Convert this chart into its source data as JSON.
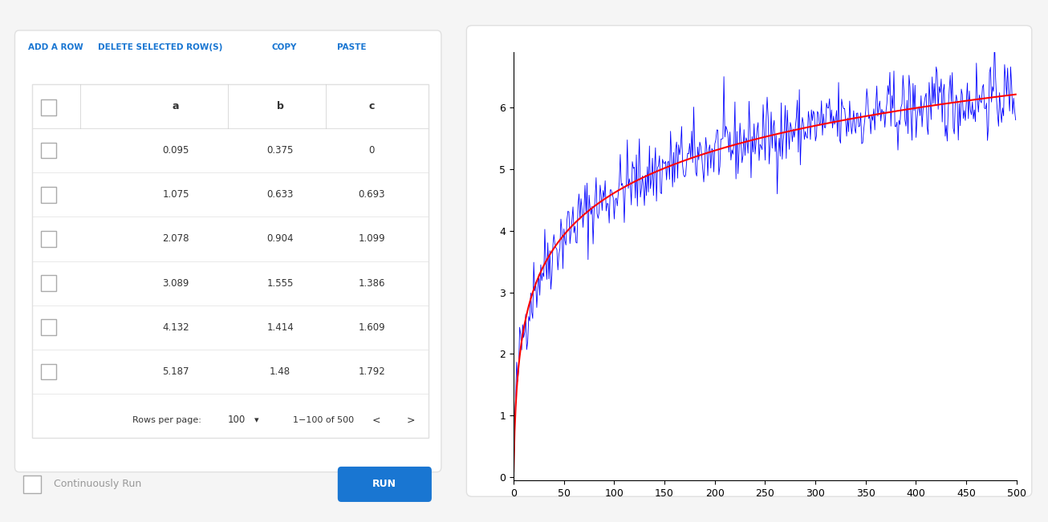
{
  "n_points": 500,
  "x_start": 0.095,
  "x_step": 1.0,
  "noise_std": 0.3,
  "smooth_color": "#ff0000",
  "noisy_color": "#0000ff",
  "smooth_linewidth": 1.5,
  "noisy_linewidth": 0.6,
  "xlim": [
    0,
    500
  ],
  "ylim": [
    -0.05,
    6.9
  ],
  "xticks": [
    0,
    50,
    100,
    150,
    200,
    250,
    300,
    350,
    400,
    450,
    500
  ],
  "yticks": [
    0,
    1,
    2,
    3,
    4,
    5,
    6
  ],
  "background_color": "#ffffff",
  "page_bg": "#f5f5f5",
  "panel_bg": "#ffffff",
  "border_color": "#e0e0e0",
  "blue_color": "#1976d2",
  "text_color": "#333333",
  "light_text": "#999999",
  "seed": 42,
  "table_headers": [
    "a",
    "b",
    "c"
  ],
  "table_rows": [
    [
      0.095,
      0.375,
      0
    ],
    [
      1.075,
      0.633,
      0.693
    ],
    [
      2.078,
      0.904,
      1.099
    ],
    [
      3.089,
      1.555,
      1.386
    ],
    [
      4.132,
      1.414,
      1.609
    ],
    [
      5.187,
      1.48,
      1.792
    ]
  ],
  "btn_labels": [
    "ADD A ROW",
    "DELETE SELECTED ROW(S)",
    "COPY",
    "PASTE"
  ],
  "rows_per_page_label": "Rows per page:",
  "rows_per_page_val": "100",
  "pagination_label": "1−100 of 500",
  "continuously_run_label": "Continuously Run",
  "run_btn_label": "RUN",
  "figsize": [
    13.06,
    6.51
  ],
  "dpi": 100
}
